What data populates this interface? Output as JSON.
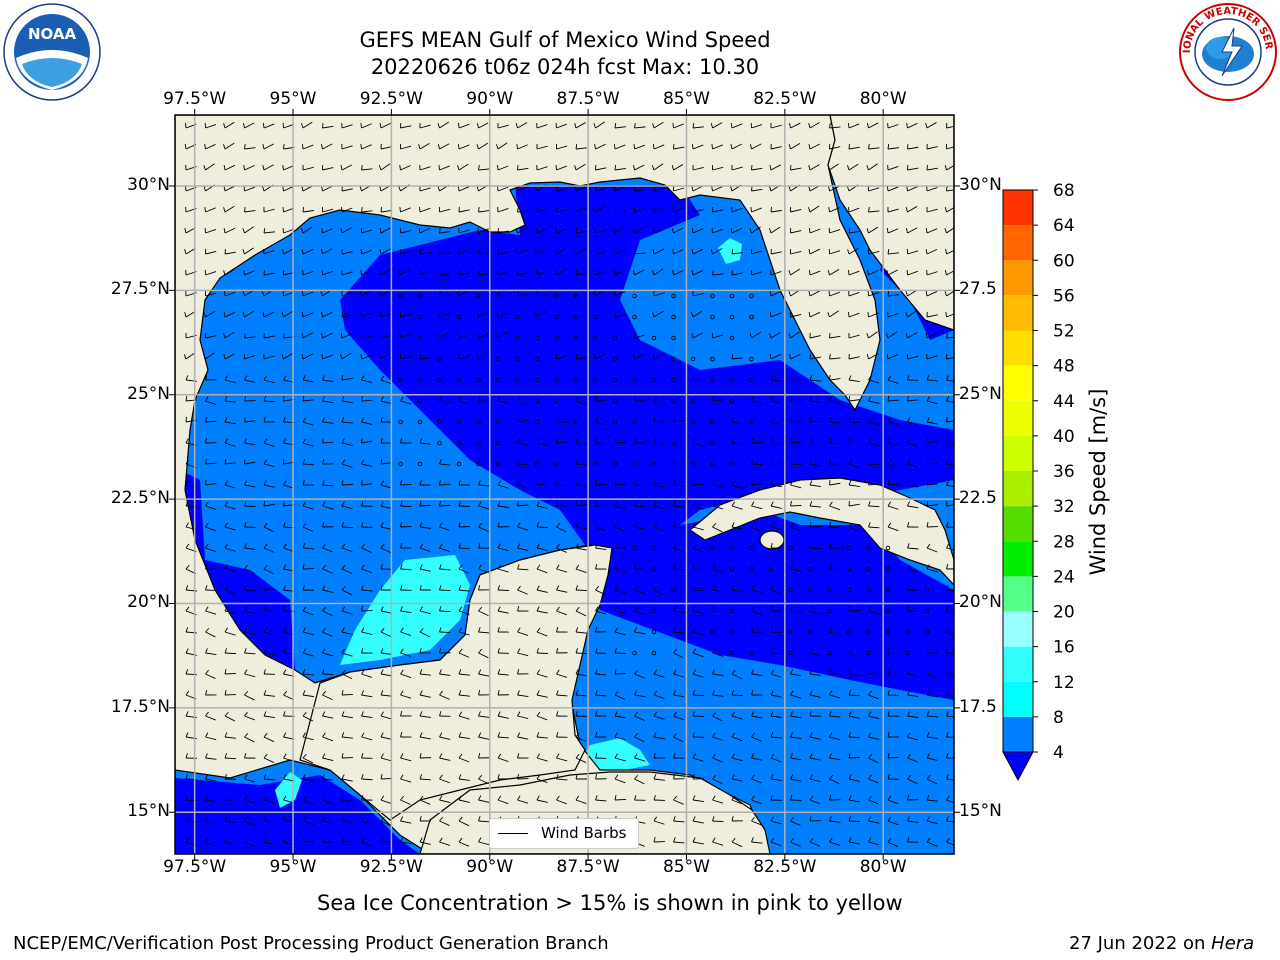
{
  "title": {
    "line1": "GEFS MEAN Gulf of Mexico Wind Speed",
    "line2": "20220626 t06z 024h fcst   Max: 10.30"
  },
  "map": {
    "lon_ticks": [
      "97.5°W",
      "95°W",
      "92.5°W",
      "90°W",
      "87.5°W",
      "85°W",
      "82.5°W",
      "80°W"
    ],
    "lat_ticks_left": [
      "30°N",
      "27.5°N",
      "25°N",
      "22.5°N",
      "20°N",
      "17.5°N",
      "15°N"
    ],
    "lat_ticks_right": [
      "30°N",
      "27.5",
      "25°N",
      "22.5",
      "20°N",
      "17.5",
      "15°N"
    ],
    "lon_range": [
      -98,
      -78.2
    ],
    "lat_range": [
      14,
      31.7
    ],
    "colors": {
      "land": "#efeedc",
      "ocean_4_8": "#0080ff",
      "ocean_below_4": "#0000ff",
      "ocean_12_16": "#33ffff",
      "grid": "#b0b0b0"
    },
    "legend_label": "Wind Barbs"
  },
  "colorbar": {
    "label": "Wind Speed [m/s]",
    "levels": [
      4,
      8,
      12,
      16,
      20,
      24,
      28,
      32,
      36,
      40,
      44,
      48,
      52,
      56,
      60,
      64,
      68
    ],
    "colors": [
      "#0080ff",
      "#00ffff",
      "#33ffff",
      "#99ffff",
      "#55ff88",
      "#00ee00",
      "#55dd00",
      "#aaee00",
      "#ccff00",
      "#eeff00",
      "#ffff00",
      "#ffdd00",
      "#ffbb00",
      "#ff9900",
      "#ff6600",
      "#ff3300",
      "#ff0000"
    ],
    "extend_color": "#0000ff"
  },
  "caption": "Sea Ice Concentration > 15% is shown in pink to yellow",
  "footer": {
    "left": "NCEP/EMC/Verification Post Processing Product Generation Branch",
    "date": "27 Jun 2022 on ",
    "machine": "Hera"
  },
  "logos": {
    "noaa_text": "NOAA",
    "nws_text": "NATIONAL WEATHER SERVICE"
  }
}
